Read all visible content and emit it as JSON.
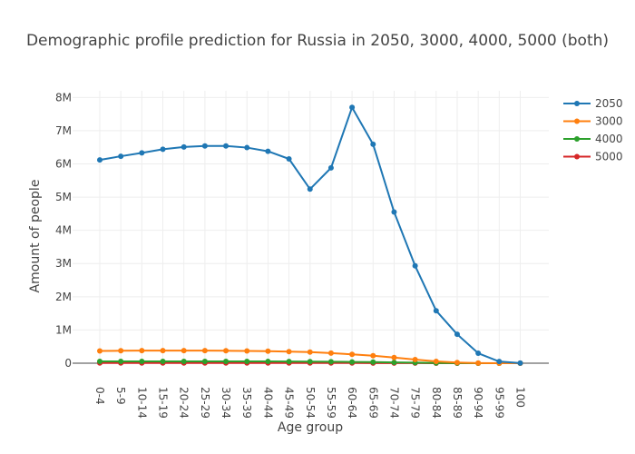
{
  "chart_data": {
    "type": "line",
    "title": "Demographic profile prediction for Russia in 2050, 3000, 4000, 5000 (both)",
    "xlabel": "Age group",
    "ylabel": "Amount of people",
    "categories": [
      "0-4",
      "5-9",
      "10-14",
      "15-19",
      "20-24",
      "25-29",
      "30-34",
      "35-39",
      "40-44",
      "45-49",
      "50-54",
      "55-59",
      "60-64",
      "65-69",
      "70-74",
      "75-79",
      "80-84",
      "85-89",
      "90-94",
      "95-99",
      "100"
    ],
    "ylim": [
      0,
      8200000
    ],
    "yticks": [
      0,
      1000000,
      2000000,
      3000000,
      4000000,
      5000000,
      6000000,
      7000000,
      8000000
    ],
    "ytick_labels": [
      "0",
      "1M",
      "2M",
      "3M",
      "4M",
      "5M",
      "6M",
      "7M",
      "8M"
    ],
    "grid": true,
    "legend_position": "top-right",
    "series": [
      {
        "name": "2050",
        "color": "#1f77b4",
        "values": [
          6120000,
          6230000,
          6330000,
          6440000,
          6510000,
          6540000,
          6540000,
          6490000,
          6380000,
          6150000,
          5240000,
          5880000,
          7700000,
          6590000,
          4550000,
          2930000,
          1580000,
          870000,
          300000,
          50000,
          5000
        ]
      },
      {
        "name": "3000",
        "color": "#ff7f0e",
        "values": [
          370000,
          375000,
          378000,
          380000,
          380000,
          378000,
          375000,
          370000,
          362000,
          350000,
          335000,
          305000,
          265000,
          225000,
          170000,
          110000,
          55000,
          20000,
          5000,
          1000,
          100
        ]
      },
      {
        "name": "4000",
        "color": "#2ca02c",
        "values": [
          55000,
          55000,
          55000,
          55000,
          55000,
          55000,
          54000,
          54000,
          53000,
          51000,
          49000,
          45000,
          39000,
          33000,
          25000,
          16000,
          8000,
          3000,
          800,
          150,
          10
        ]
      },
      {
        "name": "5000",
        "color": "#d62728",
        "values": [
          8000,
          8000,
          8000,
          8000,
          8000,
          8000,
          7900,
          7800,
          7700,
          7500,
          7200,
          6600,
          5700,
          4800,
          3600,
          2300,
          1200,
          400,
          100,
          20,
          1
        ]
      }
    ]
  }
}
